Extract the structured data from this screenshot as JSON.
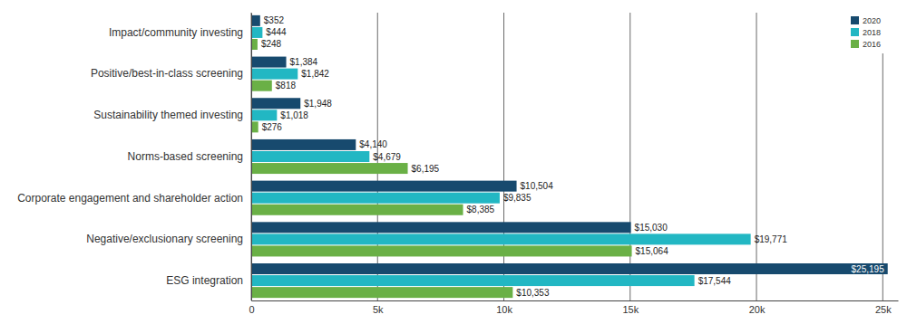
{
  "chart_data": {
    "type": "bar",
    "orientation": "horizontal",
    "categories": [
      "Impact/community investing",
      "Positive/best-in-class screening",
      "Sustainability themed investing",
      "Norms-based screening",
      "Corporate engagement and shareholder action",
      "Negative/exclusionary screening",
      "ESG integration"
    ],
    "series": [
      {
        "name": "2020",
        "color": "#174a6e",
        "values": [
          352,
          1384,
          1948,
          4140,
          10504,
          15030,
          25195
        ],
        "value_labels": [
          "$352",
          "$1,384",
          "$1,948",
          "$4,140",
          "$10,504",
          "$15,030",
          "$25,195"
        ]
      },
      {
        "name": "2018",
        "color": "#22b7c3",
        "values": [
          444,
          1842,
          1018,
          4679,
          9835,
          19771,
          17544
        ],
        "value_labels": [
          "$444",
          "$1,842",
          "$1,018",
          "$4,679",
          "$9,835",
          "$19,771",
          "$17,544"
        ]
      },
      {
        "name": "2016",
        "color": "#6ab046",
        "values": [
          248,
          818,
          276,
          6195,
          8385,
          15064,
          10353
        ],
        "value_labels": [
          "$248",
          "$818",
          "$276",
          "$6,195",
          "$8,385",
          "$15,064",
          "$10,353"
        ]
      }
    ],
    "xlim": [
      0,
      25600
    ],
    "xticks": [
      0,
      {
        "value": 5000,
        "label": "5k"
      },
      {
        "value": 10000,
        "label": "10k"
      },
      {
        "value": 15000,
        "label": "15k"
      },
      {
        "value": 20000,
        "label": "20k"
      },
      {
        "value": 25000,
        "label": "25k"
      }
    ],
    "grid": true,
    "legend": "top-right",
    "data_labels": true
  }
}
